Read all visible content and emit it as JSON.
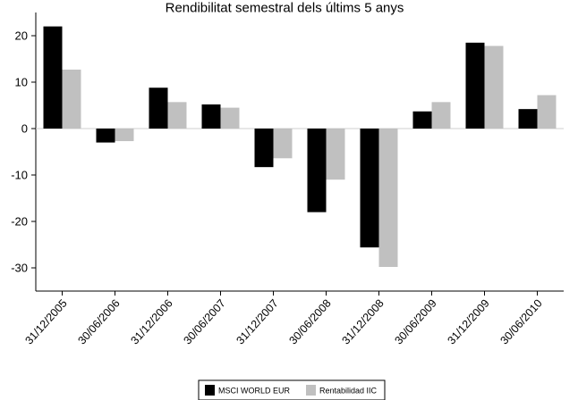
{
  "chart_data": {
    "type": "bar",
    "title": "Rendibilitat semestral dels últims 5 anys",
    "xlabel": "",
    "ylabel": "",
    "categories": [
      "31/12/2005",
      "30/06/2006",
      "31/12/2006",
      "30/06/2007",
      "31/12/2007",
      "30/06/2008",
      "31/12/2008",
      "30/06/2009",
      "31/12/2009",
      "30/06/2010"
    ],
    "series": [
      {
        "name": "MSCI WORLD EUR",
        "color": "#000000",
        "values": [
          22.0,
          -3.0,
          8.8,
          5.2,
          -8.3,
          -18.0,
          -25.6,
          3.7,
          18.5,
          4.2
        ]
      },
      {
        "name": "Rentabilidad IIC",
        "color": "#c0c0c0",
        "values": [
          12.7,
          -2.7,
          5.7,
          4.5,
          -6.4,
          -11.0,
          -29.8,
          5.7,
          17.8,
          7.2
        ]
      }
    ],
    "ylim": [
      -35,
      25
    ],
    "yticks": [
      20,
      10,
      0,
      -10,
      -20,
      -30
    ],
    "grid": false,
    "legend_position": "bottom"
  }
}
